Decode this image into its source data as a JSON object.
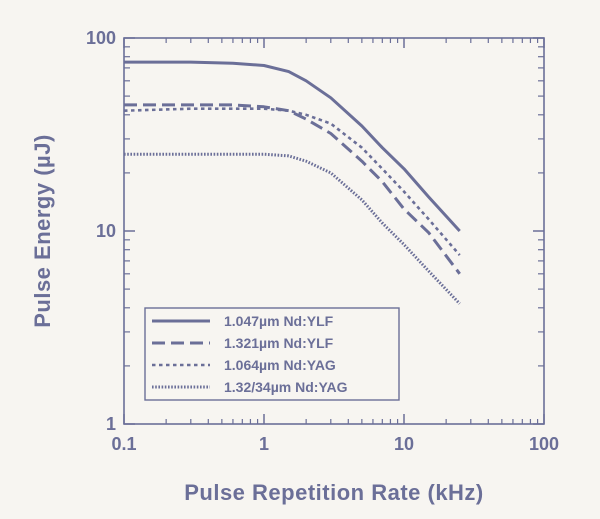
{
  "chart_data": {
    "type": "line",
    "title": "",
    "xlabel": "Pulse Repetition Rate (kHz)",
    "ylabel": "Pulse Energy (µJ)",
    "xscale": "log",
    "yscale": "log",
    "xlim": [
      0.1,
      100
    ],
    "ylim": [
      1,
      100
    ],
    "x_ticks": [
      {
        "value": 0.1,
        "label": "0.1"
      },
      {
        "value": 1,
        "label": "1"
      },
      {
        "value": 10,
        "label": "10"
      },
      {
        "value": 100,
        "label": "100"
      }
    ],
    "y_ticks": [
      {
        "value": 1,
        "label": "1"
      },
      {
        "value": 10,
        "label": "10"
      },
      {
        "value": 100,
        "label": "100"
      }
    ],
    "grid": false,
    "legend_position": "bottom-left",
    "series": [
      {
        "name": "1.047µm Nd:YLF",
        "style": "solid",
        "color": "#6b6f98",
        "x": [
          0.1,
          0.3,
          0.6,
          1,
          1.5,
          2,
          3,
          5,
          7,
          10,
          15,
          25
        ],
        "y": [
          75,
          75,
          74,
          72,
          67,
          60,
          49,
          35,
          27,
          21,
          15,
          10
        ]
      },
      {
        "name": "1.321µm Nd:YLF",
        "style": "dashed",
        "color": "#6b6f98",
        "x": [
          0.1,
          0.3,
          0.6,
          1,
          1.5,
          2,
          3,
          5,
          7,
          10,
          15,
          25
        ],
        "y": [
          45,
          45,
          45,
          44,
          42,
          38,
          32,
          23,
          18,
          13,
          9.8,
          6
        ]
      },
      {
        "name": "1.064µm Nd:YAG",
        "style": "dotted",
        "color": "#6b6f98",
        "x": [
          0.1,
          0.3,
          0.6,
          1,
          1.5,
          2,
          3,
          5,
          7,
          10,
          15,
          25
        ],
        "y": [
          42,
          43,
          43,
          43,
          42,
          40,
          36,
          27,
          21,
          16,
          11.5,
          7.5
        ]
      },
      {
        "name": "1.32/34µm Nd:YAG",
        "style": "dense-dotted",
        "color": "#6b6f98",
        "x": [
          0.1,
          0.3,
          0.6,
          1,
          1.5,
          2,
          3,
          5,
          7,
          10,
          15,
          25
        ],
        "y": [
          25,
          25,
          25,
          25,
          24.5,
          23,
          20,
          14.5,
          11,
          8.5,
          6.2,
          4.2
        ]
      }
    ]
  }
}
